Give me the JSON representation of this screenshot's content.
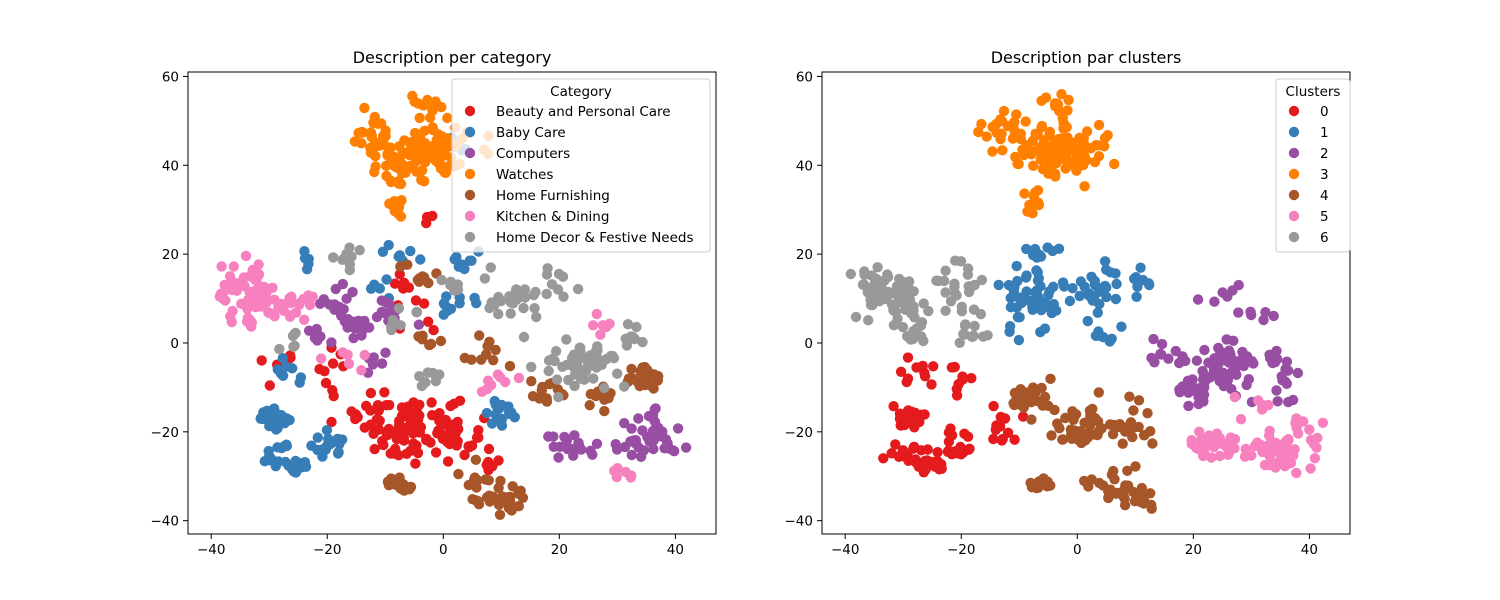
{
  "chart_data": [
    {
      "type": "scatter",
      "title": "Description per category",
      "xlabel": "",
      "ylabel": "",
      "xlim": [
        -44,
        47
      ],
      "ylim": [
        -43,
        61
      ],
      "xticks": [
        -40,
        -20,
        0,
        20,
        40
      ],
      "yticks": [
        -40,
        -20,
        0,
        20,
        40,
        60
      ],
      "grid": false,
      "legend": {
        "title": "Category",
        "position": "top-right",
        "entries": [
          {
            "label": "Beauty and Personal Care",
            "color": "#e41a1c"
          },
          {
            "label": "Baby Care",
            "color": "#377eb8"
          },
          {
            "label": "Computers",
            "color": "#984ea3"
          },
          {
            "label": "Watches",
            "color": "#ff7f00"
          },
          {
            "label": "Home Furnishing",
            "color": "#a65628"
          },
          {
            "label": "Kitchen & Dining",
            "color": "#f781bf"
          },
          {
            "label": "Home Decor & Festive Needs",
            "color": "#999999"
          }
        ]
      },
      "series": [
        {
          "color": "#e41a1c",
          "clusters": [
            [
              -5,
              -18,
              5,
              4,
              60
            ],
            [
              2,
              -20,
              3,
              3,
              25
            ],
            [
              -12,
              -15,
              3,
              3,
              15
            ],
            [
              -8,
              -23,
              3,
              2,
              15
            ],
            [
              -20,
              -8,
              2,
              4,
              10
            ],
            [
              -2,
              28,
              1,
              1,
              3
            ],
            [
              8,
              -28,
              2,
              2,
              6
            ],
            [
              -28,
              -5,
              2,
              3,
              6
            ],
            [
              -7,
              14,
              2,
              2,
              6
            ],
            [
              -5,
              6,
              3,
              2,
              6
            ]
          ]
        },
        {
          "color": "#377eb8",
          "clusters": [
            [
              -29,
              -17,
              1.5,
              1.2,
              40
            ],
            [
              -25,
              -28,
              1.5,
              1,
              20
            ],
            [
              -29,
              -25,
              2,
              1.5,
              12
            ],
            [
              -20,
              -23,
              2,
              2,
              18
            ],
            [
              -27,
              -7,
              1.5,
              1.5,
              8
            ],
            [
              10,
              -16,
              2,
              2,
              16
            ],
            [
              4,
              18,
              1.5,
              1.5,
              10
            ],
            [
              -7,
              20,
              2,
              2,
              8
            ],
            [
              2,
              10,
              2,
              3,
              10
            ],
            [
              -23,
              18,
              1,
              2,
              5
            ],
            [
              -10,
              12,
              2,
              2,
              6
            ],
            [
              3,
              44,
              1,
              1,
              3
            ]
          ]
        },
        {
          "color": "#984ea3",
          "clusters": [
            [
              -16,
              5,
              2,
              2,
              20
            ],
            [
              -9,
              7,
              2,
              2,
              16
            ],
            [
              -18,
              10,
              2,
              2,
              8
            ],
            [
              22,
              -23,
              3,
              2,
              20
            ],
            [
              35,
              -23,
              4,
              3,
              35
            ],
            [
              36,
              -16,
              2,
              2,
              6
            ],
            [
              -12,
              -5,
              2,
              2,
              6
            ],
            [
              -20,
              2,
              2,
              2,
              6
            ]
          ]
        },
        {
          "color": "#ff7f00",
          "clusters": [
            [
              -3,
              43,
              5,
              4,
              110
            ],
            [
              -12,
              48,
              3,
              3,
              20
            ],
            [
              -4,
              54,
              2,
              2,
              12
            ],
            [
              -8,
              31,
              1,
              1.5,
              10
            ],
            [
              -9,
              38,
              2,
              2,
              8
            ]
          ]
        },
        {
          "color": "#a65628",
          "clusters": [
            [
              -7,
              -32,
              1.5,
              1,
              15
            ],
            [
              7,
              -33,
              3,
              3,
              25
            ],
            [
              12,
              -36,
              2,
              2,
              10
            ],
            [
              18,
              -11,
              2,
              2,
              15
            ],
            [
              27,
              -12,
              2,
              2,
              12
            ],
            [
              35,
              -8,
              3,
              2,
              22
            ],
            [
              7,
              -2,
              3,
              3,
              10
            ],
            [
              -4,
              16,
              2,
              2,
              8
            ],
            [
              -3,
              0,
              2,
              2,
              6
            ]
          ]
        },
        {
          "color": "#f781bf",
          "clusters": [
            [
              -34,
              12,
              3,
              3,
              45
            ],
            [
              -30,
              8,
              3,
              3,
              25
            ],
            [
              -25,
              8,
              2,
              2,
              10
            ],
            [
              -34,
              4,
              2,
              1.5,
              6
            ],
            [
              10,
              -9,
              2,
              2,
              8
            ],
            [
              31,
              -29,
              1.5,
              1,
              6
            ],
            [
              27,
              4,
              2,
              2,
              6
            ],
            [
              -16,
              -3,
              2,
              2,
              6
            ]
          ]
        },
        {
          "color": "#999999",
          "clusters": [
            [
              24,
              -5,
              4,
              3,
              55
            ],
            [
              12,
              10,
              3,
              3,
              25
            ],
            [
              19,
              12,
              2,
              3,
              10
            ],
            [
              33,
              2,
              2,
              2,
              10
            ],
            [
              -16,
              19,
              2,
              2,
              10
            ],
            [
              -3,
              -7,
              2,
              1.5,
              8
            ],
            [
              -26,
              0,
              2,
              2,
              6
            ],
            [
              1,
              12,
              2,
              2,
              6
            ],
            [
              -7,
              4,
              2,
              2,
              6
            ]
          ]
        }
      ]
    },
    {
      "type": "scatter",
      "title": "Description par clusters",
      "xlabel": "",
      "ylabel": "",
      "xlim": [
        -44,
        47
      ],
      "ylim": [
        -43,
        61
      ],
      "xticks": [
        -40,
        -20,
        0,
        20,
        40
      ],
      "yticks": [
        -40,
        -20,
        0,
        20,
        40,
        60
      ],
      "grid": false,
      "legend": {
        "title": "Clusters",
        "position": "top-right",
        "entries": [
          {
            "label": "0",
            "color": "#e41a1c"
          },
          {
            "label": "1",
            "color": "#377eb8"
          },
          {
            "label": "2",
            "color": "#984ea3"
          },
          {
            "label": "3",
            "color": "#ff7f00"
          },
          {
            "label": "4",
            "color": "#a65628"
          },
          {
            "label": "5",
            "color": "#f781bf"
          },
          {
            "label": "6",
            "color": "#999999"
          }
        ]
      },
      "series": [
        {
          "color": "#e41a1c",
          "clusters": [
            [
              -29,
              -17,
              1.5,
              1.2,
              40
            ],
            [
              -25,
              -28,
              1.5,
              1,
              20
            ],
            [
              -29,
              -25,
              2,
              1.5,
              15
            ],
            [
              -21,
              -23,
              2,
              2,
              18
            ],
            [
              -27,
              -7,
              2,
              2,
              10
            ],
            [
              -19,
              -8,
              2,
              3,
              8
            ],
            [
              -13,
              -18,
              2,
              3,
              12
            ]
          ]
        },
        {
          "color": "#377eb8",
          "clusters": [
            [
              -8,
              10,
              3,
              5,
              50
            ],
            [
              3,
              12,
              3,
              4,
              25
            ],
            [
              -6,
              20,
              2,
              2,
              10
            ],
            [
              10,
              14,
              2,
              2,
              10
            ],
            [
              5,
              2,
              2,
              2,
              8
            ]
          ]
        },
        {
          "color": "#984ea3",
          "clusters": [
            [
              25,
              -5,
              4,
              4,
              65
            ],
            [
              20,
              -11,
              2,
              2,
              15
            ],
            [
              35,
              -7,
              3,
              3,
              18
            ],
            [
              13,
              -2,
              2,
              2,
              8
            ],
            [
              25,
              10,
              2,
              2,
              6
            ],
            [
              30,
              5,
              2,
              2,
              6
            ]
          ]
        },
        {
          "color": "#ff7f00",
          "clusters": [
            [
              -3,
              43,
              5,
              4,
              110
            ],
            [
              -12,
              48,
              3,
              3,
              20
            ],
            [
              -4,
              54,
              2,
              2,
              12
            ],
            [
              -8,
              31,
              1,
              1.5,
              10
            ]
          ]
        },
        {
          "color": "#a65628",
          "clusters": [
            [
              -8,
              -12,
              3,
              3,
              25
            ],
            [
              0,
              -19,
              3,
              3,
              35
            ],
            [
              10,
              -18,
              3,
              3,
              20
            ],
            [
              -7,
              -32,
              1.5,
              1,
              15
            ],
            [
              7,
              -33,
              3,
              3,
              25
            ],
            [
              12,
              -36,
              2,
              2,
              10
            ]
          ]
        },
        {
          "color": "#f781bf",
          "clusters": [
            [
              23,
              -23,
              3,
              2,
              35
            ],
            [
              35,
              -25,
              4,
              3,
              45
            ],
            [
              40,
              -20,
              2,
              3,
              10
            ],
            [
              30,
              -13,
              2,
              2,
              6
            ]
          ]
        },
        {
          "color": "#999999",
          "clusters": [
            [
              -34,
              12,
              3,
              3,
              45
            ],
            [
              -30,
              8,
              3,
              3,
              25
            ],
            [
              -20,
              12,
              3,
              4,
              25
            ],
            [
              -28,
              2,
              2,
              2,
              10
            ],
            [
              -18,
              2,
              2,
              2,
              10
            ]
          ]
        }
      ]
    }
  ]
}
